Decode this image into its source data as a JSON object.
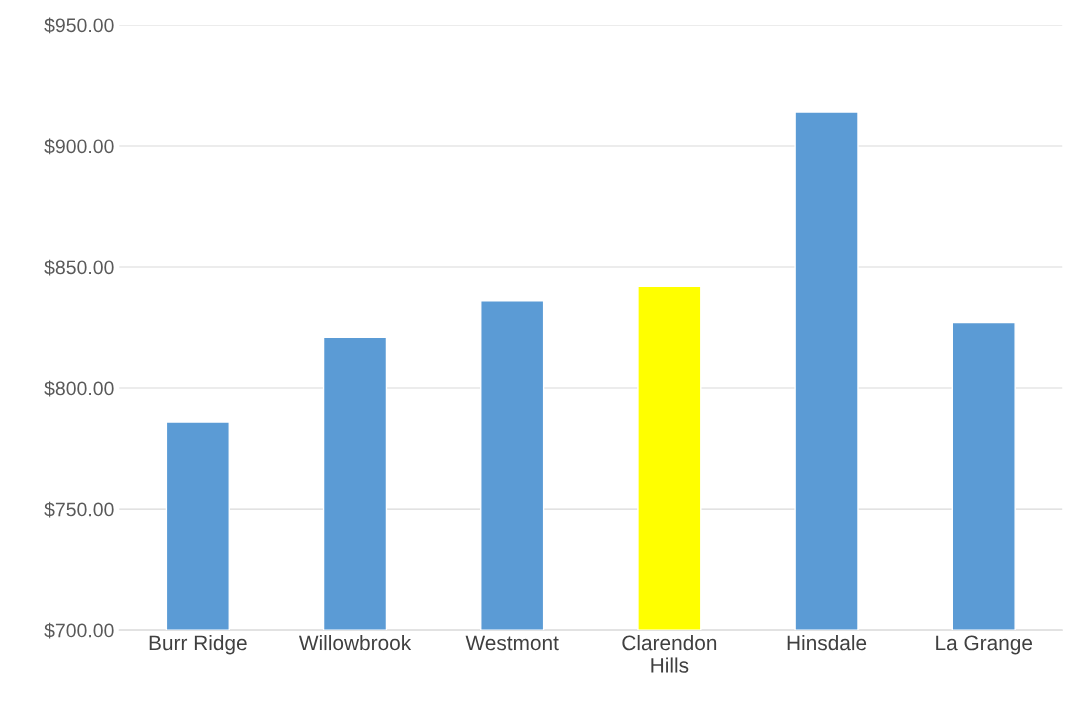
{
  "chart_data": {
    "type": "bar",
    "categories": [
      "Burr Ridge",
      "Willowbrook",
      "Westmont",
      "Clarendon\nHills",
      "Hinsdale",
      "La Grange"
    ],
    "values": [
      786,
      821,
      836,
      842,
      914,
      827
    ],
    "colors": [
      "#5b9bd5",
      "#5b9bd5",
      "#5b9bd5",
      "#ffff00",
      "#5b9bd5",
      "#5b9bd5"
    ],
    "ylim": [
      700,
      950
    ],
    "yticks": [
      {
        "value": 700,
        "label": "$700.00"
      },
      {
        "value": 750,
        "label": "$750.00"
      },
      {
        "value": 800,
        "label": "$800.00"
      },
      {
        "value": 850,
        "label": "$850.00"
      },
      {
        "value": 900,
        "label": "$900.00"
      },
      {
        "value": 950,
        "label": "$950.00"
      }
    ],
    "grid": "y",
    "legend": false
  }
}
